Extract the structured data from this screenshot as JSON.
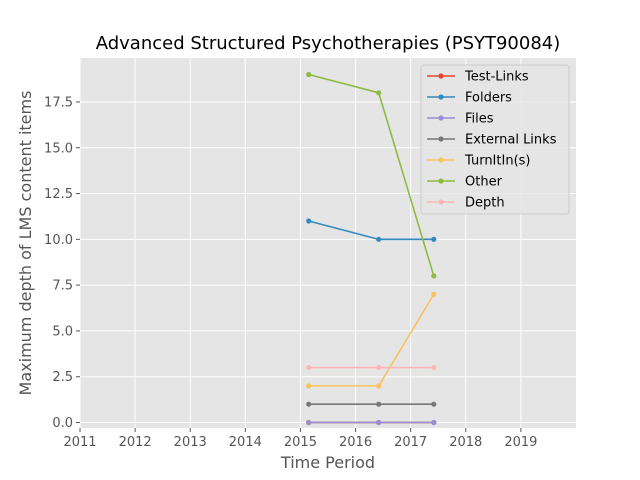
{
  "chart_data": {
    "type": "line",
    "title": "Advanced Structured Psychotherapies (PSYT90084)",
    "xlabel": "Time Period",
    "ylabel": "Maximum depth of LMS content items",
    "xlim": [
      2011,
      2020
    ],
    "ylim": [
      -0.3,
      19.9
    ],
    "xticks": [
      2011,
      2012,
      2013,
      2014,
      2015,
      2016,
      2017,
      2018,
      2019
    ],
    "yticks": [
      0.0,
      2.5,
      5.0,
      7.5,
      10.0,
      12.5,
      15.0,
      17.5
    ],
    "ytick_labels": [
      "0.0",
      "2.5",
      "5.0",
      "7.5",
      "10.0",
      "12.5",
      "15.0",
      "17.5"
    ],
    "x": [
      2015.15,
      2016.42,
      2017.42
    ],
    "grid": true,
    "legend_position": "top-right",
    "series": [
      {
        "name": "Test-Links",
        "color": "#E24A33",
        "values": [
          0,
          0,
          0
        ]
      },
      {
        "name": "Folders",
        "color": "#348ABD",
        "values": [
          11,
          10,
          10
        ]
      },
      {
        "name": "Files",
        "color": "#988ED5",
        "values": [
          0,
          0,
          0
        ]
      },
      {
        "name": "External Links",
        "color": "#777777",
        "values": [
          1,
          1,
          1
        ]
      },
      {
        "name": "TurnItIn(s)",
        "color": "#FBC15E",
        "values": [
          2,
          2,
          7
        ]
      },
      {
        "name": "Other",
        "color": "#8EBA42",
        "values": [
          19,
          18,
          8
        ]
      },
      {
        "name": "Depth",
        "color": "#FFB5B8",
        "values": [
          3,
          3,
          3
        ]
      }
    ]
  }
}
